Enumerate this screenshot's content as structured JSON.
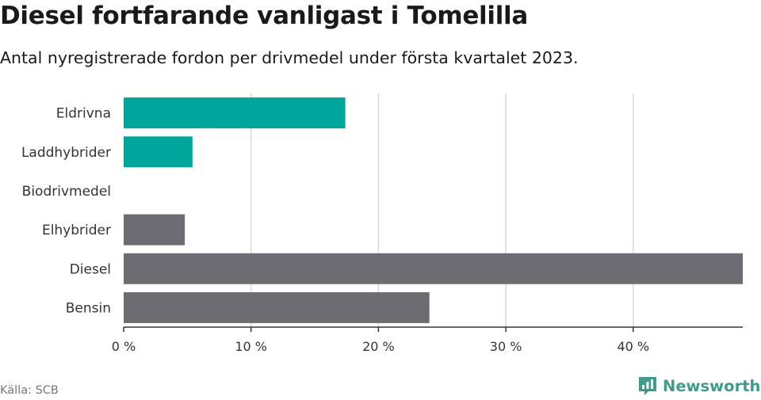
{
  "title": "Diesel fortfarande vanligast i Tomelilla",
  "subtitle": "Antal nyregistrerade fordon per drivmedel under första kvartalet 2023.",
  "source": "Källa: SCB",
  "brand": "Newsworthy",
  "colors": {
    "highlight": "#00a59b",
    "default": "#6d6c73",
    "grid": "#d9d9d9",
    "axis": "#333333",
    "brand": "#3e9c8c"
  },
  "chart_data": {
    "type": "bar",
    "orientation": "horizontal",
    "categories": [
      "Eldrivna",
      "Laddhybrider",
      "Biodrivmedel",
      "Elhybrider",
      "Diesel",
      "Bensin"
    ],
    "values": [
      17.4,
      5.4,
      0,
      4.8,
      48.6,
      24.0
    ],
    "highlighted": [
      true,
      true,
      false,
      false,
      false,
      false
    ],
    "xticks": [
      0,
      10,
      20,
      30,
      40
    ],
    "xtick_labels": [
      "0 %",
      "10 %",
      "20 %",
      "30 %",
      "40 %"
    ],
    "xlim": [
      0,
      48.6
    ],
    "grid": true
  }
}
